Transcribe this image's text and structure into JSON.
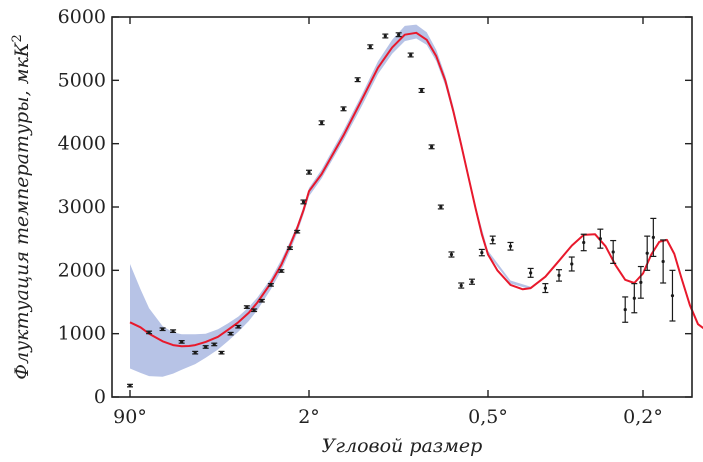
{
  "chart_data": {
    "type": "line",
    "title": "",
    "xlabel": "Угловой размер",
    "ylabel": "Флуктуация температуры, мкК²",
    "ylim": [
      0,
      6000
    ],
    "y_ticks": [
      0,
      1000,
      2000,
      3000,
      4000,
      5000,
      6000
    ],
    "x_scale": "log multipole (angular scale)",
    "x_tick_positions_multipole": [
      2,
      90,
      400,
      900
    ],
    "x_tick_labels": [
      "90°",
      "2°",
      "0,5°",
      "0,2°"
    ],
    "xlim_multipole": [
      2,
      1400
    ],
    "grid": false,
    "legend": "none",
    "colors": {
      "fit_line": "#e8192c",
      "uncertainty_band": "#b7c3e6",
      "points": "#1a1a1a"
    },
    "series": [
      {
        "kind": "band",
        "x": [
          2,
          2.5,
          3,
          4,
          5,
          6,
          8,
          10,
          13,
          16,
          20,
          25,
          30,
          40,
          50,
          60,
          70,
          80,
          90,
          100,
          120,
          140,
          160,
          180,
          200,
          220,
          240,
          260,
          280,
          300,
          320,
          340,
          360,
          400,
          450,
          500
        ],
        "lower": [
          450,
          380,
          330,
          320,
          370,
          430,
          520,
          620,
          750,
          880,
          1030,
          1200,
          1370,
          1700,
          2000,
          2300,
          2590,
          2880,
          3170,
          3450,
          4050,
          4600,
          5100,
          5420,
          5620,
          5660,
          5560,
          5300,
          4920,
          4450,
          3930,
          3420,
          2950,
          2250,
          1790,
          1700
        ],
        "upper": [
          2100,
          1700,
          1400,
          1120,
          1020,
          990,
          990,
          1000,
          1070,
          1160,
          1270,
          1420,
          1570,
          1870,
          2170,
          2450,
          2720,
          3010,
          3300,
          3590,
          4210,
          4780,
          5300,
          5640,
          5860,
          5880,
          5760,
          5480,
          5080,
          4580,
          4050,
          3520,
          3030,
          2310,
          1840,
          1740
        ]
      },
      {
        "kind": "line",
        "x": [
          2,
          2.5,
          3,
          4,
          5,
          6,
          7,
          8,
          10,
          13,
          16,
          20,
          25,
          30,
          40,
          50,
          60,
          70,
          80,
          90,
          100,
          120,
          140,
          160,
          180,
          200,
          220,
          240,
          260,
          280,
          300,
          320,
          340,
          360,
          380,
          400,
          420,
          450,
          480,
          500,
          540,
          580,
          620,
          660,
          700,
          740,
          780,
          820,
          860,
          900,
          940,
          980,
          1020,
          1060,
          1100,
          1150,
          1200,
          1250,
          1300,
          1400
        ],
        "y": [
          1180,
          1100,
          1000,
          880,
          820,
          800,
          805,
          820,
          870,
          950,
          1060,
          1180,
          1330,
          1490,
          1800,
          2090,
          2390,
          2670,
          2950,
          3250,
          3520,
          4130,
          4700,
          5200,
          5520,
          5720,
          5750,
          5640,
          5380,
          5000,
          4500,
          3980,
          3470,
          2990,
          2570,
          2250,
          2000,
          1770,
          1700,
          1720,
          1900,
          2150,
          2390,
          2560,
          2570,
          2380,
          2080,
          1850,
          1800,
          1950,
          2250,
          2450,
          2480,
          2260,
          1880,
          1450,
          1150,
          1060,
          1080,
          1160
        ]
      },
      {
        "kind": "points_with_error",
        "x": [
          2,
          3,
          4,
          5,
          6,
          8,
          10,
          12,
          14,
          17,
          20,
          24,
          28,
          33,
          40,
          50,
          60,
          70,
          80,
          90,
          100,
          120,
          135,
          150,
          170,
          190,
          210,
          230,
          250,
          270,
          295,
          320,
          350,
          380,
          410,
          450,
          500,
          540,
          580,
          620,
          660,
          720,
          770,
          820,
          860,
          890,
          920,
          950,
          1000,
          1050
        ],
        "y": [
          180,
          1020,
          1070,
          1040,
          870,
          700,
          790,
          830,
          700,
          1000,
          1110,
          1420,
          1370,
          1520,
          1770,
          1990,
          2350,
          2610,
          3080,
          3550,
          4330,
          4550,
          5010,
          5530,
          5700,
          5720,
          5400,
          4840,
          3950,
          3000,
          2250,
          1760,
          1820,
          2280,
          2480,
          2380,
          1960,
          1720,
          1920,
          2100,
          2440,
          2500,
          2290,
          1380,
          1560,
          1810,
          2270,
          2520,
          2140,
          1600
        ],
        "err": [
          20,
          20,
          20,
          20,
          20,
          20,
          20,
          20,
          20,
          20,
          20,
          20,
          20,
          20,
          20,
          20,
          20,
          20,
          30,
          30,
          30,
          30,
          30,
          30,
          30,
          30,
          30,
          30,
          30,
          30,
          40,
          40,
          40,
          50,
          60,
          60,
          70,
          70,
          90,
          110,
          130,
          150,
          180,
          200,
          230,
          250,
          270,
          300,
          340,
          400
        ]
      }
    ]
  }
}
